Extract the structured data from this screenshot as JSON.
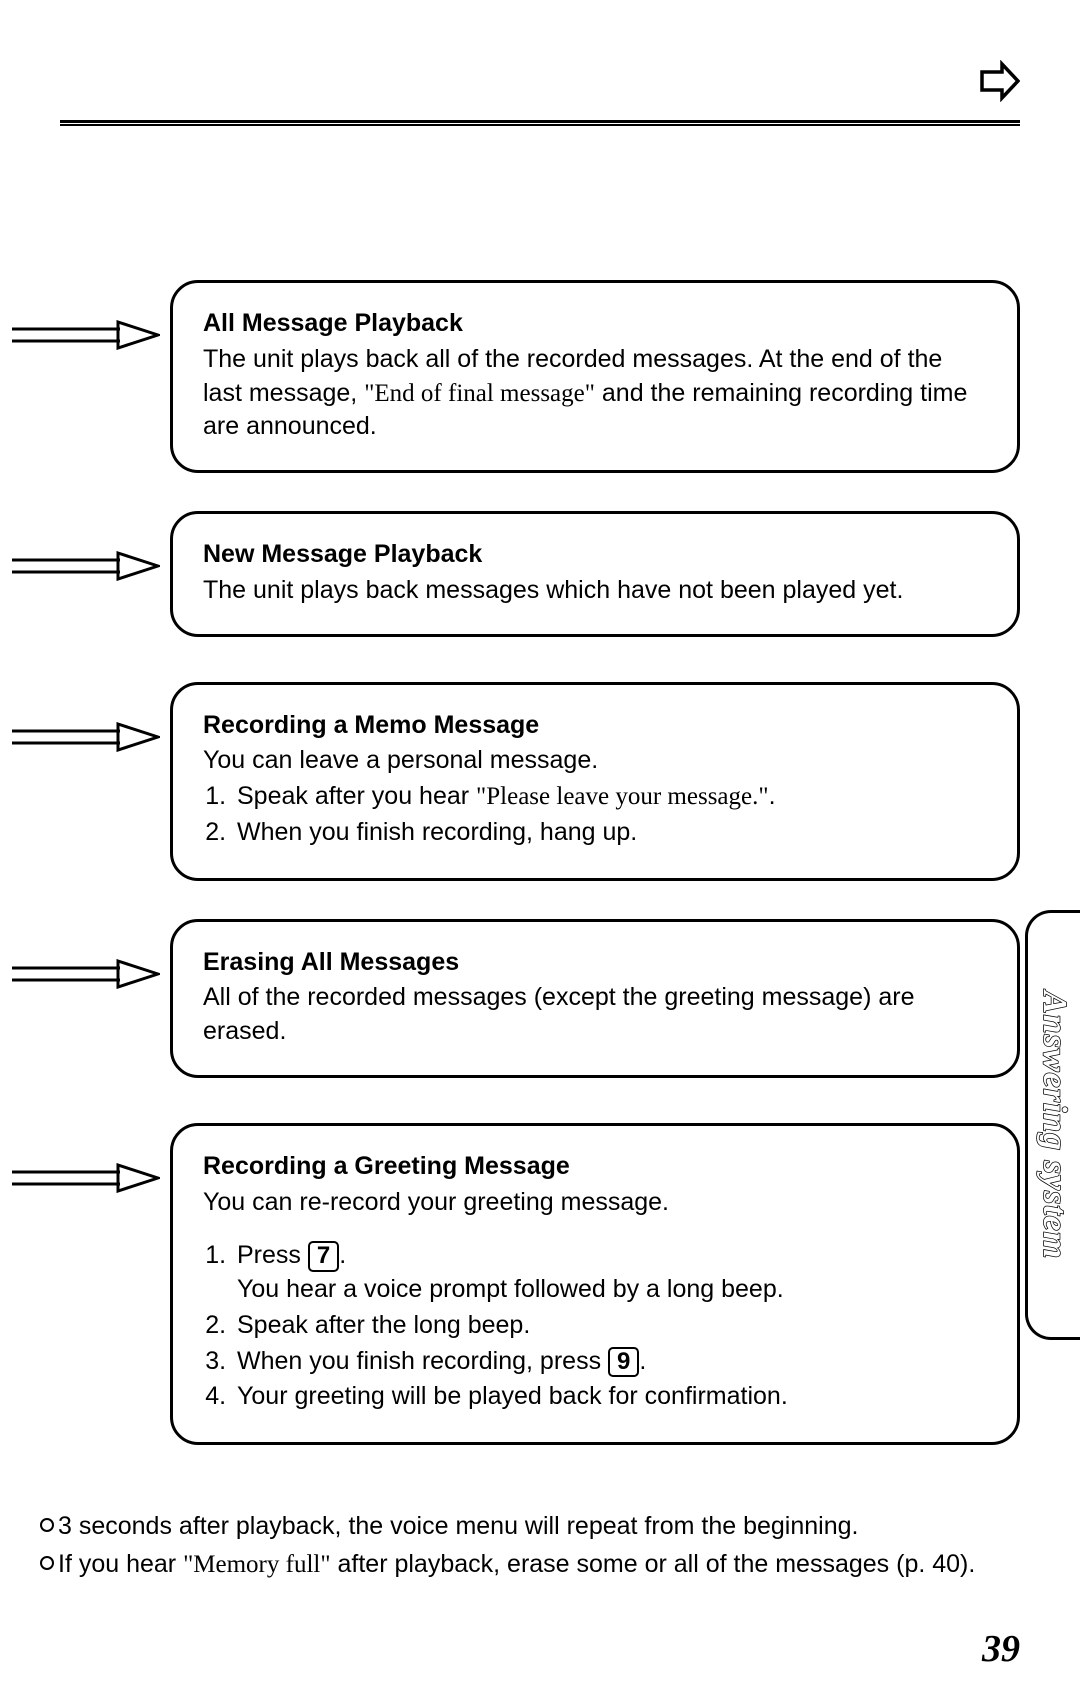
{
  "sideTab": "Answering system",
  "pageNumber": "39",
  "boxes": [
    {
      "title": "All Message Playback",
      "body_html": "The unit plays back all of the recorded messages. At the end of the last message, <span class='serif'>\"End of final message\"</span> and the remaining recording time are announced."
    },
    {
      "title": "New Message Playback",
      "body_html": "The unit plays back messages which have not been played yet."
    },
    {
      "title": "Recording a Memo Message",
      "body_html": "You can leave a personal message.<ol><li>Speak after you hear <span class='serif'>\"Please leave your message.\"</span>.</li><li>When you finish recording, hang up.</li></ol>",
      "gap": true
    },
    {
      "title": "Erasing All Messages",
      "body_html": "All of the recorded messages (except the greeting message) are erased."
    },
    {
      "title": "Recording a Greeting Message",
      "body_html": "You can re-record your greeting message.<div style='height:18px'></div><ol><li>Press <span class='keycap'>7</span>.<br>You hear a voice prompt followed by a long beep.</li><li>Speak after the long beep.</li><li>When you finish recording, press <span class='keycap'>9</span>.</li><li>Your greeting will be played back for confirmation.</li></ol>",
      "gap": true
    }
  ],
  "notes": [
    "3 seconds after playback, the voice menu will repeat from the beginning.",
    "If you hear <span class='serif'>\"Memory full\"</span> after playback, erase some or all of the messages (p. 40)."
  ]
}
